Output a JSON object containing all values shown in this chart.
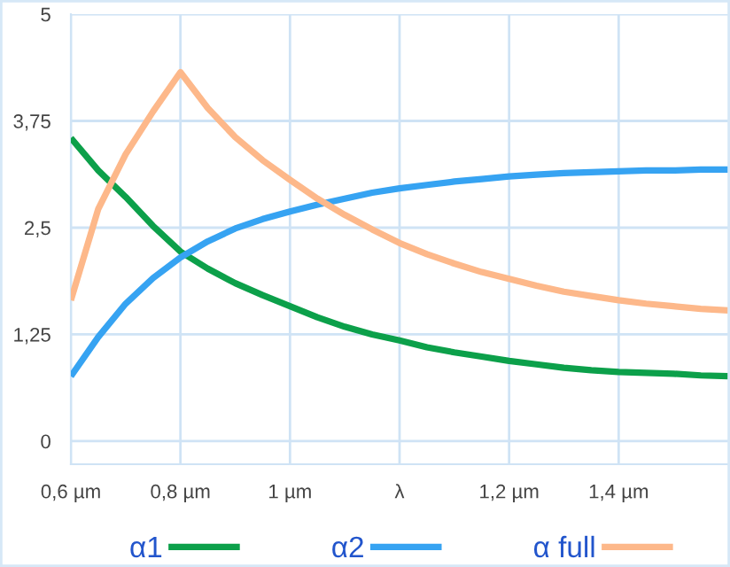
{
  "chart_data": {
    "type": "line",
    "categories": [
      "0,6 µm",
      null,
      null,
      null,
      "0,8 µm",
      null,
      null,
      null,
      "1 µm",
      null,
      null,
      null,
      "λ",
      null,
      null,
      null,
      "1,2 µm",
      null,
      null,
      null,
      "1,4 µm",
      null,
      null,
      null,
      null
    ],
    "ylim": [
      -0.27,
      5
    ],
    "yticks": [
      {
        "value": 0,
        "label": "0"
      },
      {
        "value": 1.25,
        "label": "1,25"
      },
      {
        "value": 2.5,
        "label": "2,5"
      },
      {
        "value": 3.75,
        "label": "3,75"
      },
      {
        "value": 5,
        "label": "5"
      }
    ],
    "grid": true,
    "legend": "bottom",
    "marker": "none",
    "line_style": "solid",
    "series": [
      {
        "name": "α1",
        "color": "#0ca04a",
        "values": [
          3.55,
          3.17,
          2.86,
          2.52,
          2.22,
          2.02,
          1.85,
          1.71,
          1.58,
          1.45,
          1.34,
          1.25,
          1.18,
          1.1,
          1.04,
          0.99,
          0.94,
          0.9,
          0.86,
          0.83,
          0.81,
          0.8,
          0.79,
          0.77,
          0.76
        ]
      },
      {
        "name": "α2",
        "color": "#36a3f2",
        "values": [
          0.76,
          1.22,
          1.61,
          1.91,
          2.15,
          2.34,
          2.49,
          2.6,
          2.69,
          2.77,
          2.84,
          2.91,
          2.96,
          3.0,
          3.04,
          3.07,
          3.1,
          3.12,
          3.14,
          3.15,
          3.16,
          3.17,
          3.17,
          3.18,
          3.18
        ]
      },
      {
        "name": "α full",
        "color": "#fdb88a",
        "values": [
          1.65,
          2.72,
          3.36,
          3.86,
          4.32,
          3.9,
          3.56,
          3.29,
          3.06,
          2.84,
          2.65,
          2.48,
          2.32,
          2.19,
          2.08,
          1.98,
          1.9,
          1.82,
          1.75,
          1.7,
          1.65,
          1.61,
          1.58,
          1.55,
          1.53
        ]
      }
    ]
  }
}
